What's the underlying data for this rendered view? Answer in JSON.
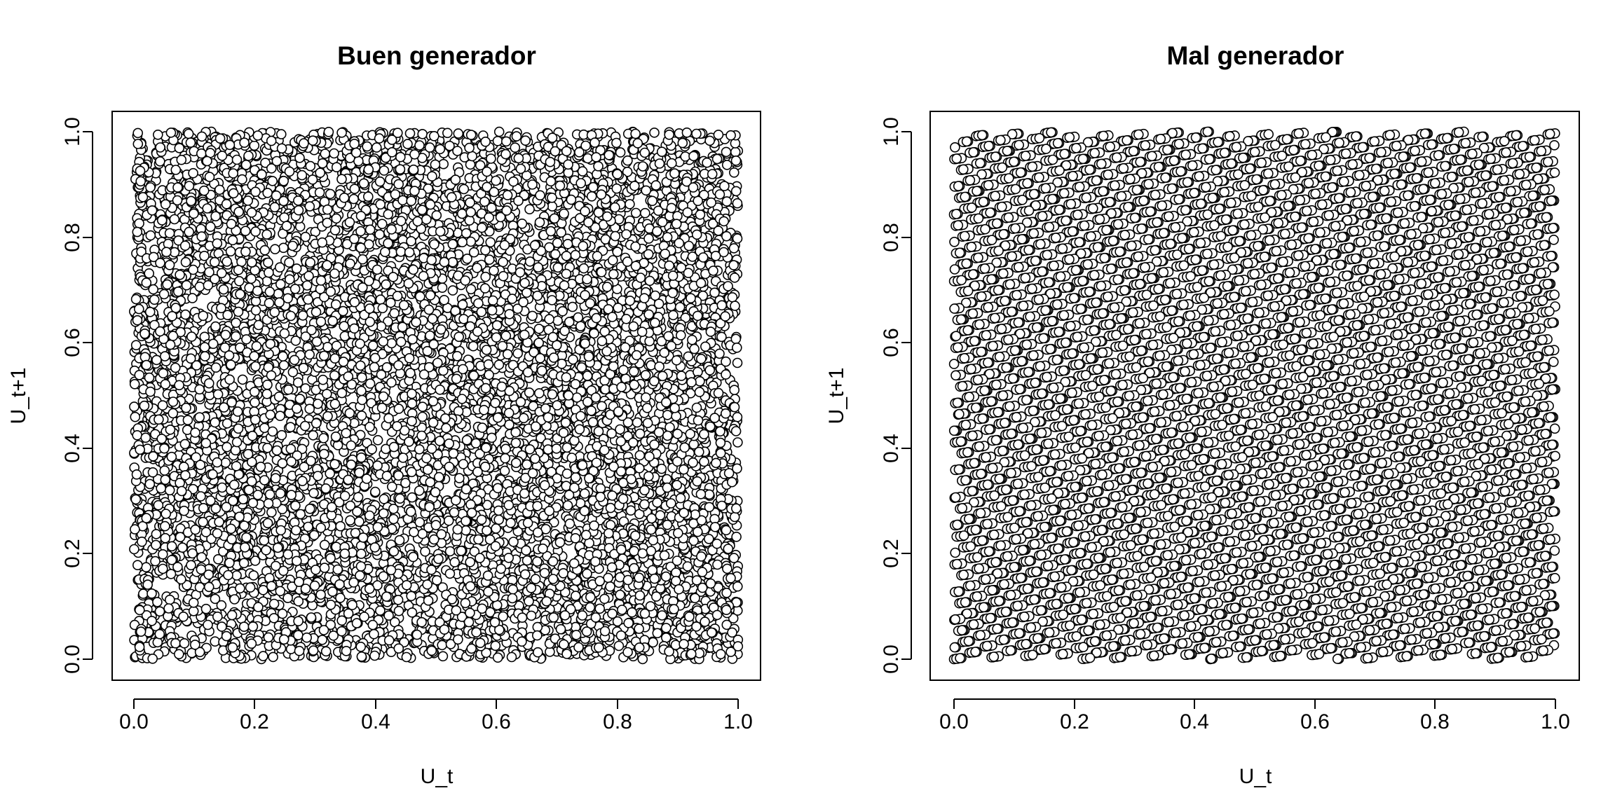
{
  "chart_data": [
    {
      "type": "scatter",
      "title": "Buen generador",
      "xlabel": "U_t",
      "ylabel": "U_t+1",
      "xlim": [
        0,
        1
      ],
      "ylim": [
        0,
        1
      ],
      "xticks": [
        "0.0",
        "0.2",
        "0.4",
        "0.6",
        "0.8",
        "1.0"
      ],
      "yticks": [
        "0.0",
        "0.2",
        "0.4",
        "0.6",
        "0.8",
        "1.0"
      ],
      "grid": false,
      "marker": "open-circle",
      "distribution": "uniform random on [0,1] x [0,1], ~10000 points, no visible structure"
    },
    {
      "type": "scatter",
      "title": "Mal generador",
      "xlabel": "U_t",
      "ylabel": "U_t+1",
      "xlim": [
        0,
        1
      ],
      "ylim": [
        0,
        1
      ],
      "xticks": [
        "0.0",
        "0.2",
        "0.4",
        "0.6",
        "0.8",
        "1.0"
      ],
      "yticks": [
        "0.0",
        "0.2",
        "0.4",
        "0.6",
        "0.8",
        "1.0"
      ],
      "grid": false,
      "marker": "open-circle",
      "distribution": "lattice of ~10000 points arranged on parallel diagonal lines (slope ~0.9), evenly spaced"
    }
  ]
}
